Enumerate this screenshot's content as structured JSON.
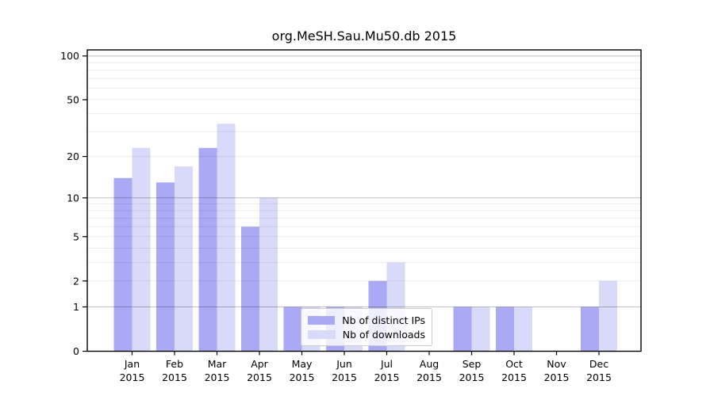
{
  "chart_data": {
    "type": "bar",
    "title": "org.MeSH.Sau.Mu50.db 2015",
    "categories": [
      "Jan",
      "Feb",
      "Mar",
      "Apr",
      "May",
      "Jun",
      "Jul",
      "Aug",
      "Sep",
      "Oct",
      "Nov",
      "Dec"
    ],
    "x_tick_year": "2015",
    "series": [
      {
        "name": "Nb of distinct IPs",
        "color": "#a9a9f4",
        "values": [
          14,
          13,
          23,
          6,
          1,
          1,
          2,
          0,
          1,
          1,
          0,
          1
        ]
      },
      {
        "name": "Nb of downloads",
        "color": "#d9d9fa",
        "values": [
          23,
          17,
          34,
          10,
          1,
          1,
          3,
          0,
          1,
          1,
          0,
          2
        ]
      }
    ],
    "yscale": "log1p",
    "ylim": [
      0,
      110
    ],
    "y_tick_labels": [
      "0",
      "1",
      "2",
      "5",
      "10",
      "20",
      "50",
      "100"
    ],
    "y_tick_values": [
      0,
      1,
      2,
      5,
      10,
      20,
      50,
      100
    ],
    "y_major_gridlines": [
      1,
      10,
      100
    ],
    "y_minor_gridlines": [
      2,
      3,
      4,
      5,
      6,
      7,
      8,
      9,
      20,
      30,
      40,
      50,
      60,
      70,
      80,
      90
    ],
    "grid": true,
    "legend_position": "inside-lower-center",
    "colors": {
      "axis": "#000000",
      "major_grid": "rgba(0,0,0,0.25)",
      "minor_grid": "rgba(0,0,0,0.08)",
      "background": "#ffffff"
    }
  }
}
